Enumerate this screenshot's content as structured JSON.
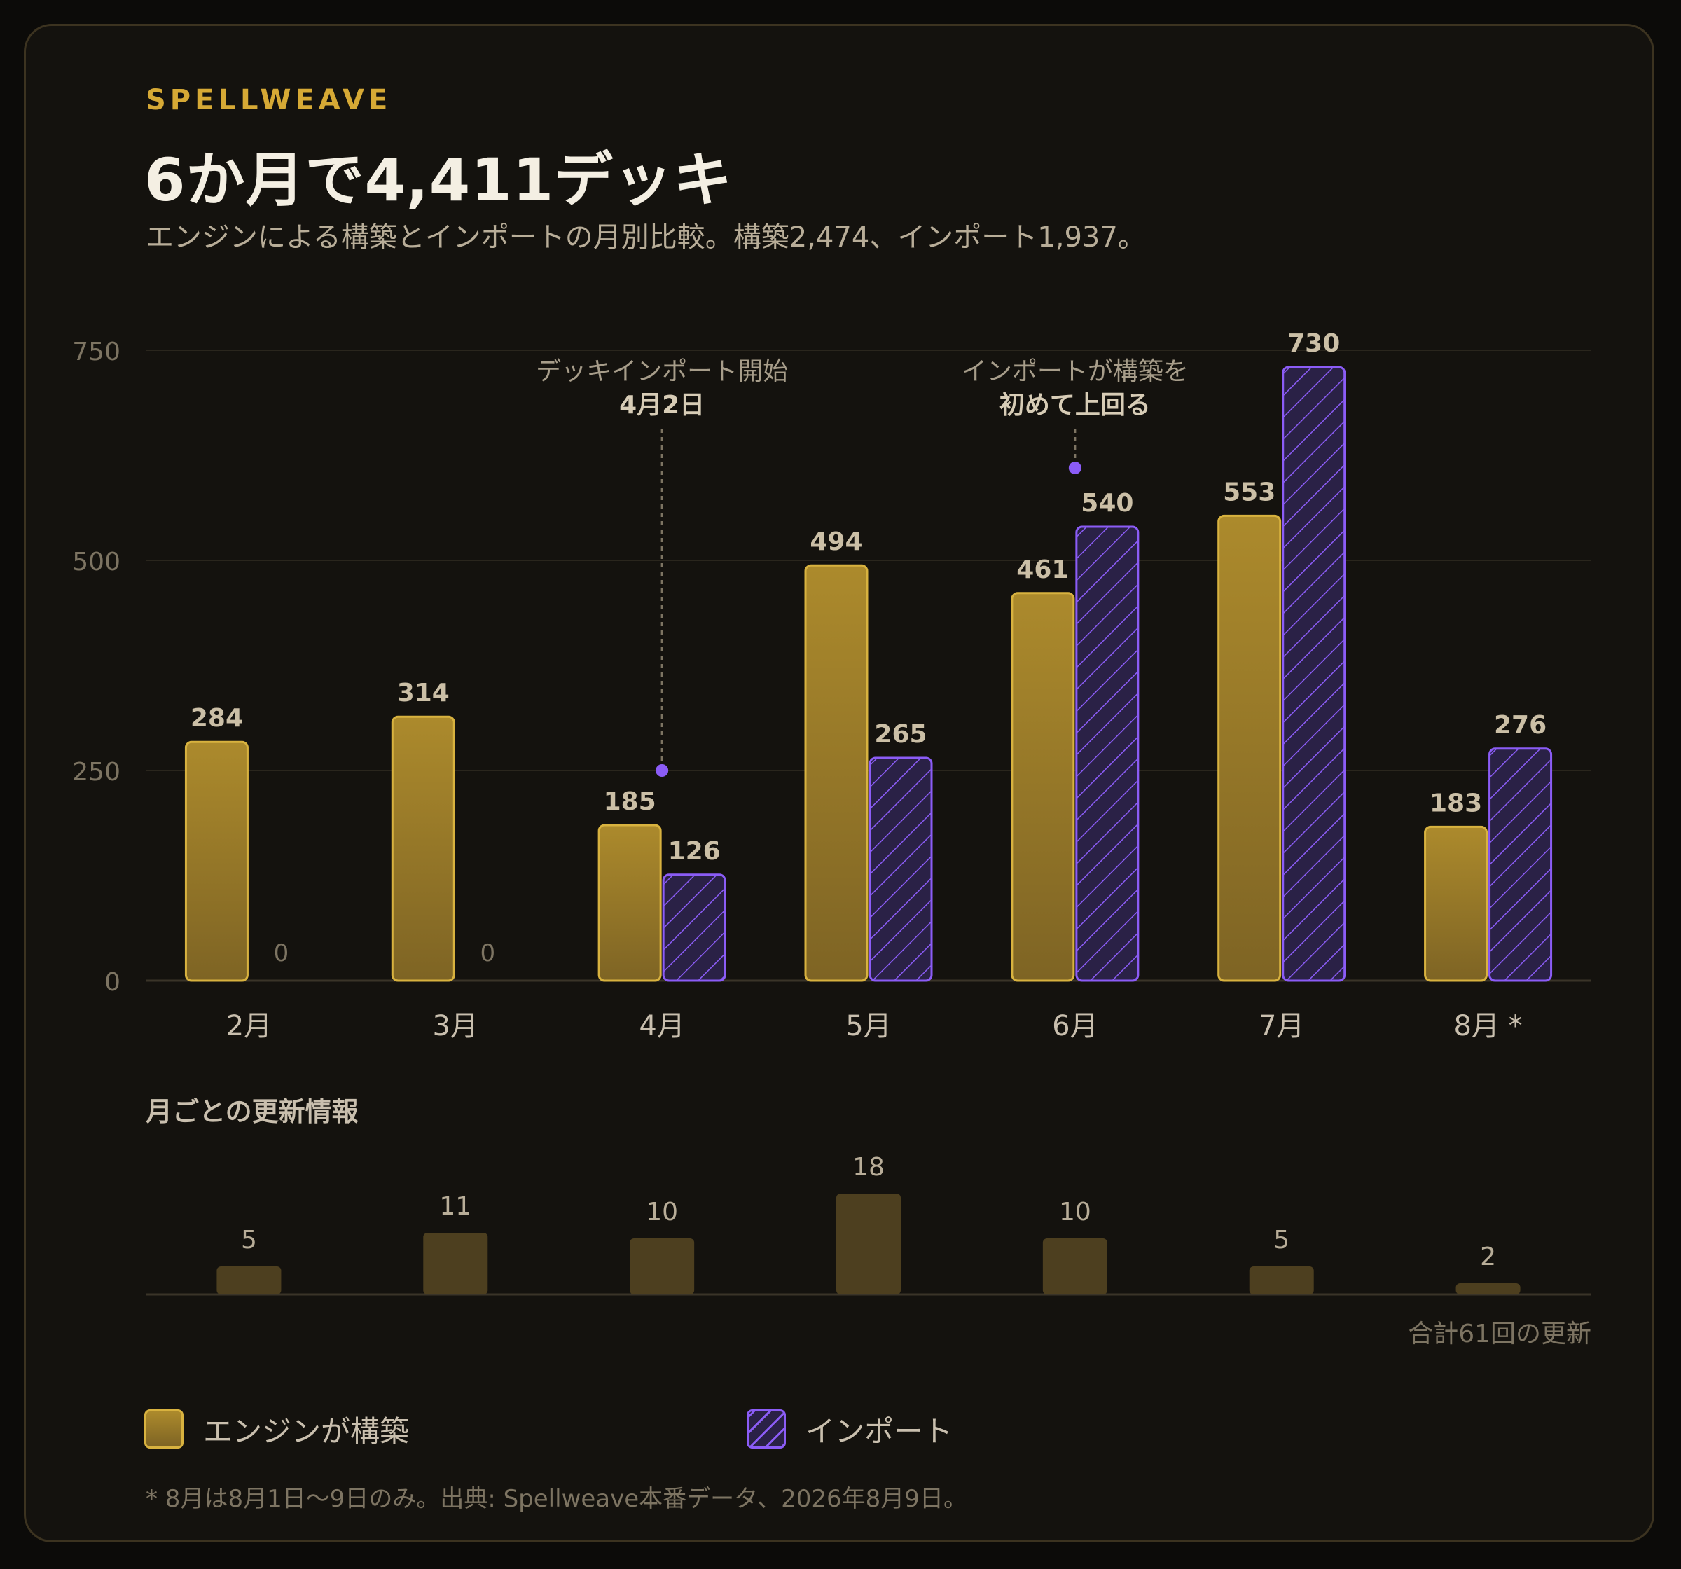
{
  "header": {
    "brand": "SPELLWEAVE",
    "title": "6か月で4,411デッキ",
    "subtitle": "エンジンによる構築とインポートの月別比較。構築2,474、インポート1,937。"
  },
  "colors": {
    "built": "#a9842a",
    "built_border": "#d8b23f",
    "imported": "#8b5cf6",
    "import_fill": "#2a2146",
    "updates": "#4d3f1f"
  },
  "chart_data": {
    "type": "bar",
    "categories": [
      "2月",
      "3月",
      "4月",
      "5月",
      "6月",
      "7月",
      "8月 *"
    ],
    "series": [
      {
        "name": "エンジンが構築",
        "values": [
          284,
          314,
          185,
          494,
          461,
          553,
          183
        ]
      },
      {
        "name": "インポート",
        "values": [
          0,
          0,
          126,
          265,
          540,
          730,
          276
        ]
      }
    ],
    "ylim": [
      0,
      750
    ],
    "yticks": [
      0,
      250,
      500,
      750
    ],
    "grid": true,
    "legend_placement": "bottom",
    "annotations": [
      {
        "line1": "デッキインポート開始",
        "line2": "4月2日",
        "category": "4月",
        "value": 250
      },
      {
        "line1": "インポートが構築を",
        "line2": "初めて上回る",
        "category": "6月",
        "value": 610
      }
    ],
    "updates": {
      "title": "月ごとの更新情報",
      "values": [
        5,
        11,
        10,
        18,
        10,
        5,
        2
      ],
      "total_label": "合計61回の更新"
    }
  },
  "legend": {
    "built_label": "エンジンが構築",
    "imported_label": "インポート"
  },
  "footnote": "* 8月は8月1日〜9日のみ。出典: Spellweave本番データ、2026年8月9日。"
}
